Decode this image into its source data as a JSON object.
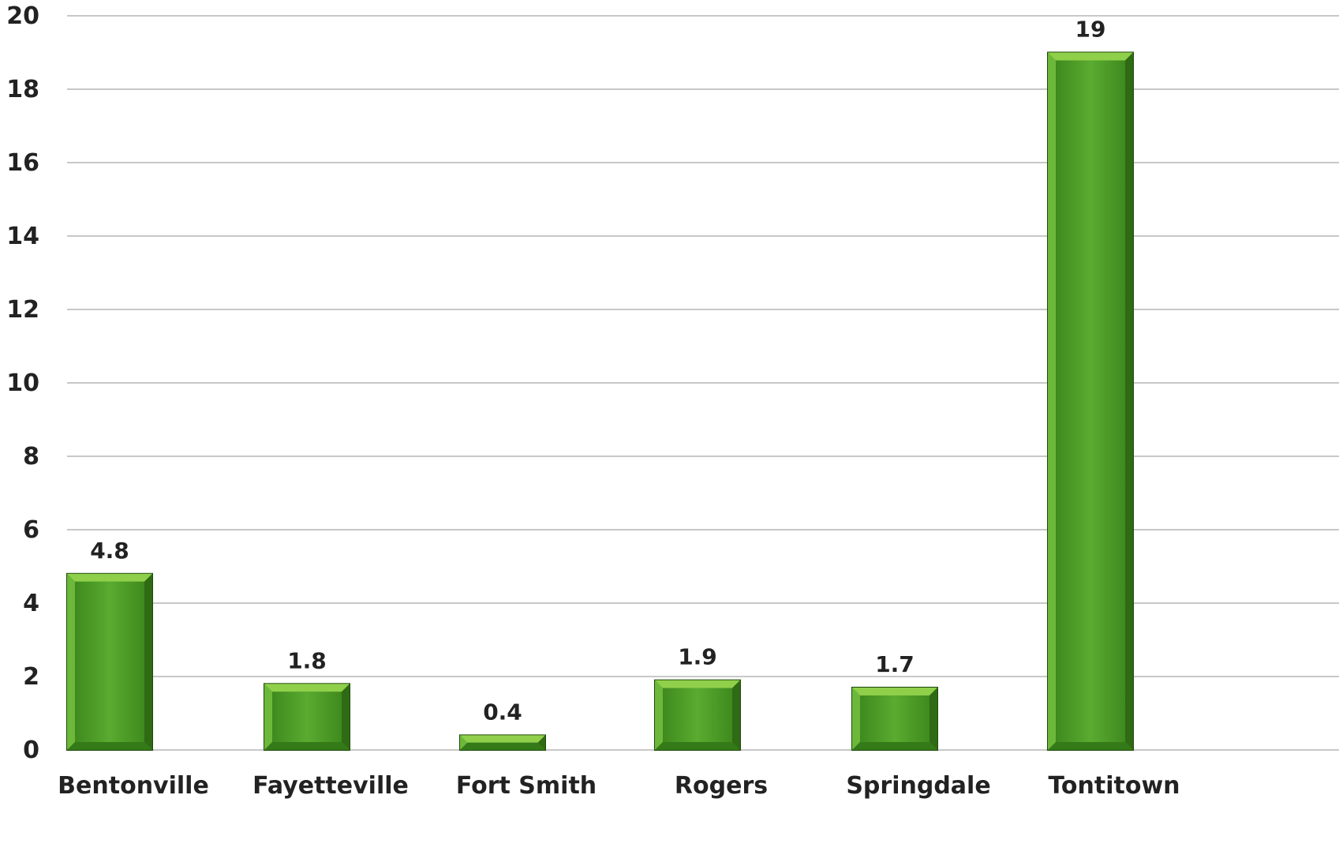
{
  "chart_data": {
    "type": "bar",
    "categories": [
      "Bentonville",
      "Fayetteville",
      "Fort Smith",
      "Rogers",
      "Springdale",
      "Tontitown"
    ],
    "values": [
      4.8,
      1.8,
      0.4,
      1.9,
      1.7,
      19
    ],
    "data_labels": [
      "4.8",
      "1.8",
      "0.4",
      "1.9",
      "1.7",
      "19"
    ],
    "ylim": [
      0,
      20
    ],
    "yticks": [
      0,
      2,
      4,
      6,
      8,
      10,
      12,
      14,
      16,
      18,
      20
    ],
    "ytick_labels": [
      "0",
      "2",
      "4",
      "6",
      "8",
      "10",
      "12",
      "14",
      "16",
      "18",
      "20"
    ],
    "grid": true,
    "legend": "none",
    "title": "",
    "xlabel": "",
    "ylabel": "",
    "colors": {
      "bar_fill": "#4e9a2a",
      "bar_light": "#8fcf4a",
      "bar_dark": "#2f6a14",
      "bar_edge": "#1f4a0c",
      "grid": "#c8c8c8",
      "text": "#222222"
    }
  }
}
